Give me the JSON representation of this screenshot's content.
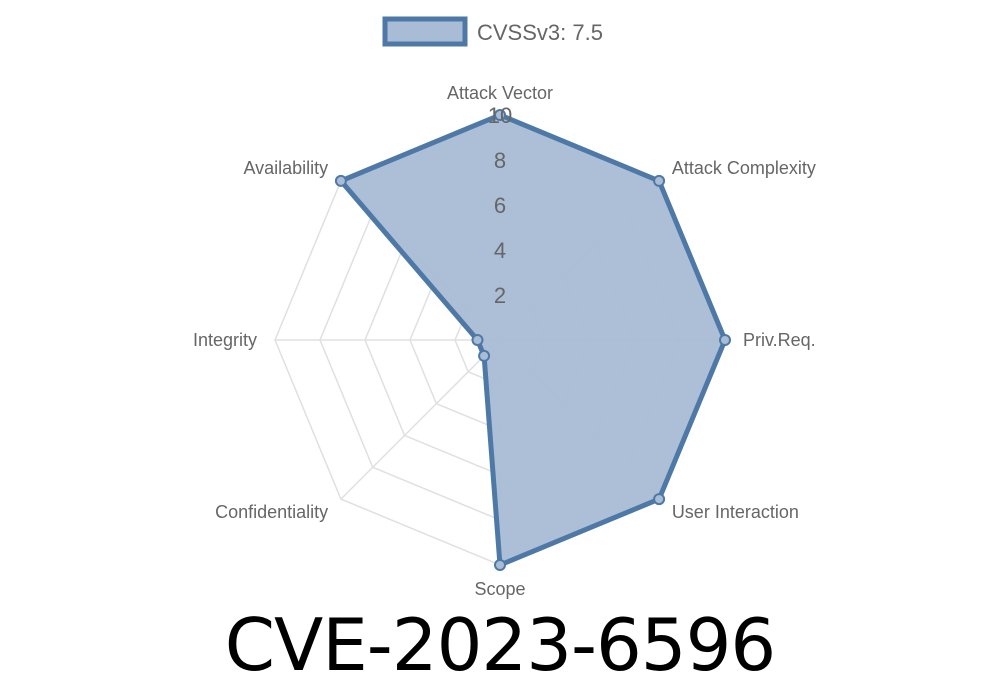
{
  "chart_data": {
    "type": "radar",
    "title": "CVE-2023-6596",
    "axes": [
      "Attack Vector",
      "Attack Complexity",
      "Priv.Req.",
      "User Interaction",
      "Scope",
      "Confidentiality",
      "Integrity",
      "Availability"
    ],
    "series": [
      {
        "name": "CVSSv3: 7.5",
        "values": [
          10,
          10,
          10,
          10,
          10,
          1,
          1,
          10
        ]
      }
    ],
    "rlim": [
      0,
      10
    ],
    "ticks": [
      "2",
      "4",
      "6",
      "8",
      "10"
    ],
    "grid": true,
    "legend": "top",
    "colors": {
      "line": "#4e79a7",
      "fill": "#a8bcd5",
      "grid": "#e0e0e0"
    }
  }
}
